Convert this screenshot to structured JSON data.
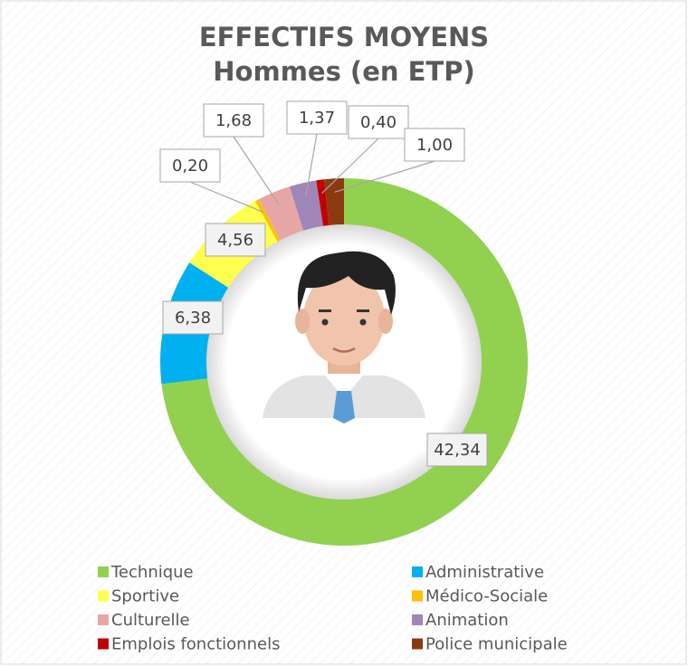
{
  "chart_data": {
    "type": "donut",
    "title": "EFFECTIFS MOYENS Hommes (en ETP)",
    "categories": [
      "Technique",
      "Administrative",
      "Sportive",
      "Médico-Sociale",
      "Culturelle",
      "Animation",
      "Emplois fonctionnels",
      "Police municipale"
    ],
    "values": [
      42.34,
      6.38,
      4.56,
      0.2,
      1.68,
      1.37,
      0.4,
      1.0
    ],
    "value_labels": [
      "42,34",
      "6,38",
      "4,56",
      "0,20",
      "1,68",
      "1,37",
      "0,40",
      "1,00"
    ],
    "colors": [
      "#92d050",
      "#00b0f0",
      "#ffff4d",
      "#ffc000",
      "#e6a6a6",
      "#9e86b8",
      "#c00000",
      "#8b3a0f"
    ]
  }
}
